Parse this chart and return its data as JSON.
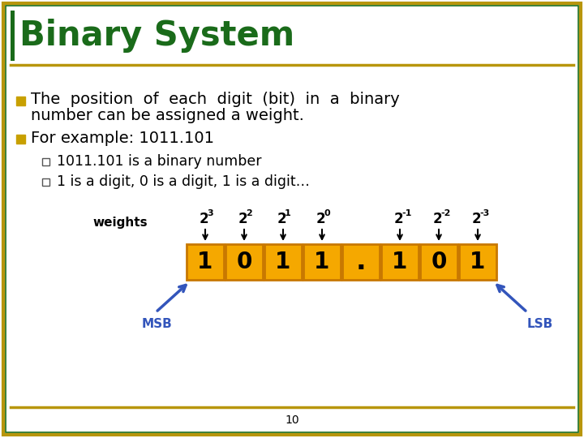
{
  "title": "Binary System",
  "title_color": "#1a6b1a",
  "background_color": "#ffffff",
  "border_color_outer": "#b8960c",
  "border_color_inner": "#1a6b1a",
  "bullet_color": "#c8a000",
  "bullet1_line1": "The  position  of  each  digit  (bit)  in  a  binary",
  "bullet1_line2": "number can be assigned a weight.",
  "bullet2_text": "For example: 1011.101",
  "sub_bullet1": "1011.101 is a binary number",
  "sub_bullet2": "1 is a digit, 0 is a digit, 1 is a digit…",
  "weights_label": "weights",
  "digits": [
    "1",
    "0",
    "1",
    "1",
    ".",
    "1",
    "0",
    "1"
  ],
  "weight_indices": [
    0,
    1,
    2,
    3,
    5,
    6,
    7
  ],
  "weight_exponents": [
    "3",
    "2",
    "1",
    "0",
    "-1",
    "-2",
    "-3"
  ],
  "box_color": "#f5a800",
  "box_border_color": "#c87800",
  "msb_label": "MSB",
  "lsb_label": "LSB",
  "arrow_color": "#3355bb",
  "page_number": "10"
}
